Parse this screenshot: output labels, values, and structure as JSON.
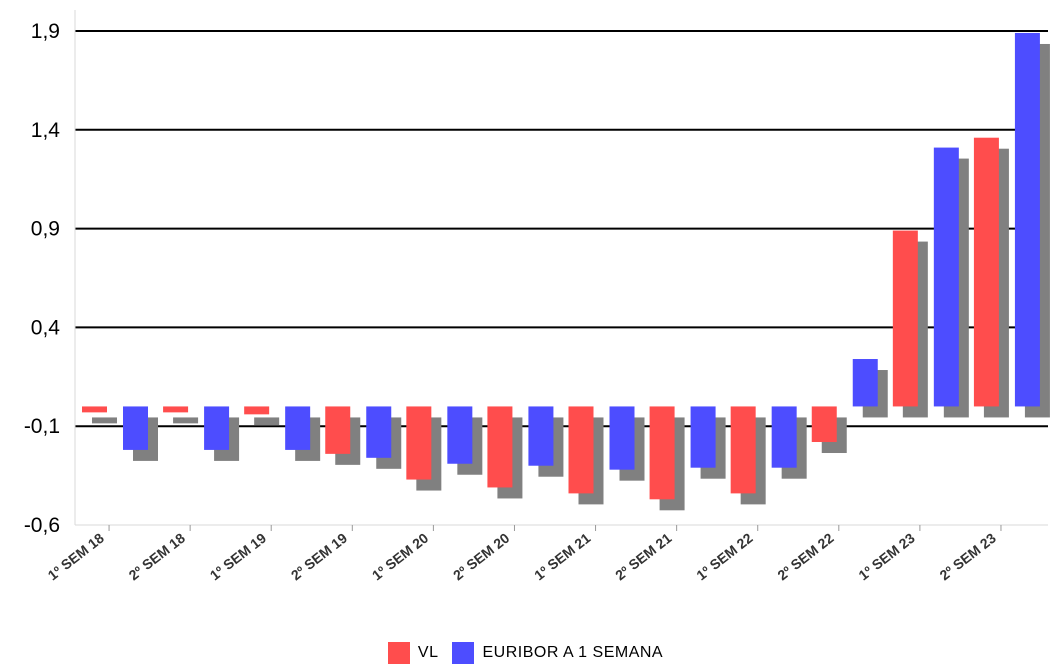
{
  "chart_data": {
    "type": "bar",
    "categories": [
      "1º SEM 18",
      "2º SEM 18",
      "1º SEM 19",
      "2º SEM 19",
      "1º SEM 20",
      "2º SEM 20",
      "1º SEM 21",
      "2º SEM 21",
      "1º SEM 22",
      "2º SEM 22",
      "1º SEM 23",
      "2º SEM 23"
    ],
    "series": [
      {
        "name": "VL",
        "color": "#ff4d4d",
        "values": [
          -0.03,
          -0.03,
          -0.04,
          -0.24,
          -0.37,
          -0.41,
          -0.44,
          -0.47,
          -0.44,
          -0.18,
          0.89,
          1.36
        ]
      },
      {
        "name": "EURIBOR A 1 SEMANA",
        "color": "#4d4dff",
        "values": [
          -0.22,
          -0.22,
          -0.22,
          -0.26,
          -0.29,
          -0.3,
          -0.32,
          -0.31,
          -0.31,
          0.24,
          1.31,
          1.89
        ]
      }
    ],
    "shadow_color": "#808080",
    "ylim": [
      -0.6,
      1.9
    ],
    "yticks": [
      "1,9",
      "1,4",
      "0,9",
      "0,4",
      "-0,1",
      "-0,6"
    ],
    "ytick_values": [
      1.9,
      1.4,
      0.9,
      0.4,
      -0.1,
      -0.6
    ],
    "grid": true,
    "legend_position": "bottom-center"
  }
}
